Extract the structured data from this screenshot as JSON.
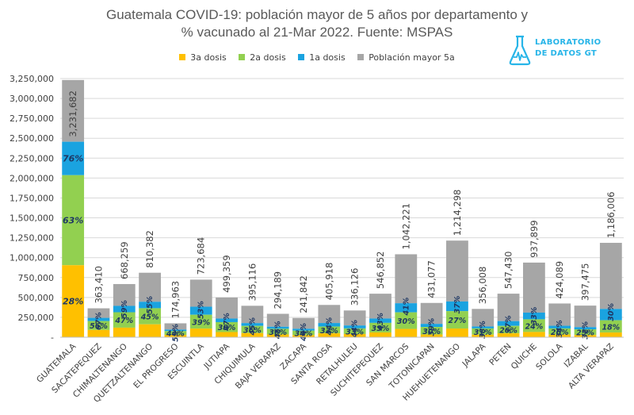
{
  "title_lines": [
    "Guatemala COVID-19: población mayor de 5 años por departamento y",
    "% vacunado al 21-Mar 2022. Fuente: MSPAS"
  ],
  "logo": {
    "line1": "LABORATORIO",
    "line2": "DE DATOS GT",
    "icon": "flask-icon"
  },
  "colors": {
    "pop": "#a6a6a6",
    "d1": "#1aa3e0",
    "d2": "#92d050",
    "d3": "#ffc000",
    "gridline": "#d9d9d9",
    "text": "#404040",
    "pct": "#1f3864",
    "pop_label": "#404040"
  },
  "chart_data": {
    "type": "bar",
    "title": "Guatemala COVID-19: población mayor de 5 años por departamento y % vacunado al 21-Mar 2022. Fuente: MSPAS",
    "legend": [
      "3a dosis",
      "2a dosis",
      "1a dosis",
      "Población mayor 5a"
    ],
    "legend_position": "top",
    "ylim": [
      0,
      3250000
    ],
    "yticks": [
      "-",
      "250,000",
      "500,000",
      "750,000",
      "1,000,000",
      "1,250,000",
      "1,500,000",
      "1,750,000",
      "2,000,000",
      "2,250,000",
      "2,500,000",
      "2,750,000",
      "3,000,000",
      "3,250,000"
    ],
    "grid": true,
    "categories": [
      "GUATEMALA",
      "SACATEPEQUEZ",
      "CHIMALTENANGO",
      "QUETZALTENANGO",
      "EL PROGRESO",
      "ESCUINTLA",
      "JUTIAPA",
      "CHIQUIMULA",
      "BAJA VERAPAZ",
      "ZACAPA",
      "SANTA ROSA",
      "RETALHULEU",
      "SUCHITEPEQUEZ",
      "SAN MARCOS",
      "TOTONICAPAN",
      "HUEHUETENANGO",
      "JALAPA",
      "PETEN",
      "QUICHE",
      "SOLOLA",
      "IZABAL",
      "ALTA VERAPAZ"
    ],
    "population": [
      3231682,
      363410,
      668259,
      810382,
      174963,
      723684,
      499359,
      395116,
      294189,
      241842,
      405918,
      336126,
      546852,
      1042221,
      431077,
      1214298,
      356008,
      547430,
      937899,
      424089,
      397475,
      1186006
    ],
    "population_labels": [
      "3,231,682",
      "363,410",
      "668,259",
      "810,382",
      "174,963",
      "723,684",
      "499,359",
      "395,116",
      "294,189",
      "241,842",
      "405,918",
      "336,126",
      "546,852",
      "1,042,221",
      "431,077",
      "1,214,298",
      "356,008",
      "547,430",
      "937,899",
      "424,089",
      "397,475",
      "1,186,006"
    ],
    "pct_1a": [
      76,
      67,
      59,
      55,
      55,
      53,
      47,
      45,
      45,
      44,
      44,
      44,
      43,
      41,
      39,
      37,
      38,
      37,
      33,
      34,
      32,
      30
    ],
    "pct_2a": [
      63,
      56,
      47,
      45,
      44,
      39,
      38,
      36,
      36,
      34,
      33,
      33,
      33,
      30,
      30,
      27,
      31,
      26,
      24,
      26,
      25,
      18
    ],
    "pct_3a": [
      28,
      25,
      18,
      20,
      17,
      15,
      13,
      13,
      12,
      11,
      12,
      12,
      11,
      10,
      8,
      9,
      9,
      9,
      7,
      8,
      7,
      5
    ],
    "pct_3a_label_shown": [
      true,
      false,
      false,
      false,
      false,
      false,
      false,
      false,
      false,
      false,
      false,
      false,
      false,
      false,
      false,
      false,
      false,
      false,
      false,
      false,
      false,
      false
    ]
  }
}
